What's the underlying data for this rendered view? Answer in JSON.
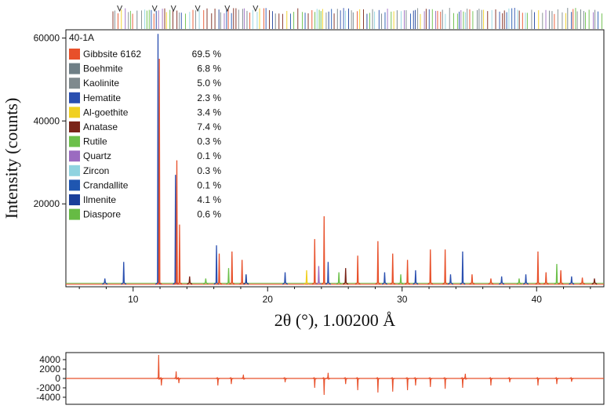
{
  "chart_data": [
    {
      "type": "line",
      "ylabel": "Intensity (counts)",
      "xlabel": "2θ (°), 1.00200 Å",
      "xlim": [
        5,
        45
      ],
      "ylim": [
        0,
        62000
      ],
      "x_ticks": [
        10,
        20,
        30,
        40
      ],
      "y_ticks": [
        20000,
        40000,
        60000
      ],
      "x_tick_labels": [
        "10",
        "20",
        "30",
        "40"
      ],
      "y_tick_labels": [
        "20000",
        "40000",
        "60000"
      ],
      "grid": false,
      "legend": {
        "title": "40-1A",
        "position": "top-left",
        "items": [
          {
            "name": "Gibbsite 6162",
            "value": "69.5 %",
            "color": "#e8502a"
          },
          {
            "name": "Boehmite",
            "value": "6.8 %",
            "color": "#6f7f86"
          },
          {
            "name": "Kaolinite",
            "value": "5.0 %",
            "color": "#7f8a8e"
          },
          {
            "name": "Hematite",
            "value": "2.3 %",
            "color": "#2a4fb0"
          },
          {
            "name": "Al-goethite",
            "value": "3.4 %",
            "color": "#f0d020"
          },
          {
            "name": "Anatase",
            "value": "7.4 %",
            "color": "#7a2418"
          },
          {
            "name": "Rutile",
            "value": "0.3 %",
            "color": "#6cc04a"
          },
          {
            "name": "Quartz",
            "value": "0.1 %",
            "color": "#9b6bc0"
          },
          {
            "name": "Zircon",
            "value": "0.3 %",
            "color": "#8fd3e0"
          },
          {
            "name": "Crandallite",
            "value": "0.1 %",
            "color": "#1f56b0"
          },
          {
            "name": "Ilmenite",
            "value": "4.1 %",
            "color": "#1a3f9a"
          },
          {
            "name": "Diaspore",
            "value": "0.6 %",
            "color": "#66bb44"
          }
        ]
      },
      "background": 600,
      "peaks": [
        {
          "x": 7.9,
          "y": 2000,
          "color": "#2a4fb0"
        },
        {
          "x": 9.3,
          "y": 6000,
          "color": "#2a4fb0"
        },
        {
          "x": 11.85,
          "y": 61000,
          "color": "#2a4fb0"
        },
        {
          "x": 11.95,
          "y": 55000,
          "color": "#e8502a"
        },
        {
          "x": 13.15,
          "y": 27000,
          "color": "#2a4fb0"
        },
        {
          "x": 13.25,
          "y": 30500,
          "color": "#e8502a"
        },
        {
          "x": 13.45,
          "y": 15000,
          "color": "#e8502a"
        },
        {
          "x": 14.2,
          "y": 2500,
          "color": "#7a2418"
        },
        {
          "x": 15.4,
          "y": 2000,
          "color": "#6cc04a"
        },
        {
          "x": 16.2,
          "y": 10000,
          "color": "#2a4fb0"
        },
        {
          "x": 16.4,
          "y": 8000,
          "color": "#e8502a"
        },
        {
          "x": 17.1,
          "y": 4500,
          "color": "#6cc04a"
        },
        {
          "x": 17.35,
          "y": 8500,
          "color": "#e8502a"
        },
        {
          "x": 18.1,
          "y": 6500,
          "color": "#e8502a"
        },
        {
          "x": 18.4,
          "y": 3000,
          "color": "#1a3f9a"
        },
        {
          "x": 21.3,
          "y": 3500,
          "color": "#2a4fb0"
        },
        {
          "x": 22.9,
          "y": 4000,
          "color": "#f0d020"
        },
        {
          "x": 23.5,
          "y": 11500,
          "color": "#e8502a"
        },
        {
          "x": 23.8,
          "y": 5000,
          "color": "#9b6bc0"
        },
        {
          "x": 24.2,
          "y": 17000,
          "color": "#e8502a"
        },
        {
          "x": 24.5,
          "y": 6000,
          "color": "#2a4fb0"
        },
        {
          "x": 25.3,
          "y": 3500,
          "color": "#6cc04a"
        },
        {
          "x": 25.8,
          "y": 4500,
          "color": "#7a2418"
        },
        {
          "x": 26.7,
          "y": 7500,
          "color": "#e8502a"
        },
        {
          "x": 28.2,
          "y": 11000,
          "color": "#e8502a"
        },
        {
          "x": 28.7,
          "y": 3500,
          "color": "#2a4fb0"
        },
        {
          "x": 29.3,
          "y": 8000,
          "color": "#e8502a"
        },
        {
          "x": 29.9,
          "y": 3000,
          "color": "#6cc04a"
        },
        {
          "x": 30.4,
          "y": 6500,
          "color": "#e8502a"
        },
        {
          "x": 31.0,
          "y": 4000,
          "color": "#2a4fb0"
        },
        {
          "x": 32.1,
          "y": 9000,
          "color": "#e8502a"
        },
        {
          "x": 33.2,
          "y": 9000,
          "color": "#e8502a"
        },
        {
          "x": 33.6,
          "y": 3000,
          "color": "#2a4fb0"
        },
        {
          "x": 34.5,
          "y": 8500,
          "color": "#2a4fb0"
        },
        {
          "x": 35.2,
          "y": 3000,
          "color": "#e8502a"
        },
        {
          "x": 36.6,
          "y": 2000,
          "color": "#e8502a"
        },
        {
          "x": 37.4,
          "y": 2500,
          "color": "#2a4fb0"
        },
        {
          "x": 38.7,
          "y": 2000,
          "color": "#6cc04a"
        },
        {
          "x": 39.2,
          "y": 3000,
          "color": "#2a4fb0"
        },
        {
          "x": 40.1,
          "y": 8500,
          "color": "#e8502a"
        },
        {
          "x": 40.7,
          "y": 3500,
          "color": "#e8502a"
        },
        {
          "x": 41.5,
          "y": 5500,
          "color": "#6cc04a"
        },
        {
          "x": 41.8,
          "y": 4000,
          "color": "#e8502a"
        },
        {
          "x": 42.6,
          "y": 2500,
          "color": "#2a4fb0"
        },
        {
          "x": 43.4,
          "y": 2200,
          "color": "#e8502a"
        },
        {
          "x": 44.3,
          "y": 2000,
          "color": "#7a2418"
        }
      ]
    },
    {
      "type": "line",
      "title": "",
      "xlim": [
        5,
        45
      ],
      "ylim": [
        -5500,
        5500
      ],
      "y_ticks": [
        -4000,
        -2000,
        0,
        2000,
        4000
      ],
      "y_tick_labels": [
        "-4000",
        "-2000",
        "0",
        "2000",
        "4000"
      ],
      "color": "#e8502a",
      "residual_spikes": [
        {
          "x": 11.9,
          "y": 5000
        },
        {
          "x": 12.1,
          "y": -1500
        },
        {
          "x": 13.2,
          "y": 1500
        },
        {
          "x": 13.4,
          "y": -1000
        },
        {
          "x": 16.3,
          "y": -1500
        },
        {
          "x": 17.3,
          "y": -1200
        },
        {
          "x": 18.2,
          "y": 800
        },
        {
          "x": 21.3,
          "y": -800
        },
        {
          "x": 23.5,
          "y": -2000
        },
        {
          "x": 24.2,
          "y": -3500
        },
        {
          "x": 24.5,
          "y": 1200
        },
        {
          "x": 25.8,
          "y": -1200
        },
        {
          "x": 26.7,
          "y": -2500
        },
        {
          "x": 28.2,
          "y": -3000
        },
        {
          "x": 29.3,
          "y": -2800
        },
        {
          "x": 30.4,
          "y": -2500
        },
        {
          "x": 31.0,
          "y": -1500
        },
        {
          "x": 32.1,
          "y": -1800
        },
        {
          "x": 33.2,
          "y": -2200
        },
        {
          "x": 34.5,
          "y": -2000
        },
        {
          "x": 34.7,
          "y": 1000
        },
        {
          "x": 36.6,
          "y": -1500
        },
        {
          "x": 38.0,
          "y": -800
        },
        {
          "x": 40.1,
          "y": -1500
        },
        {
          "x": 41.5,
          "y": -1200
        },
        {
          "x": 42.6,
          "y": -700
        }
      ]
    }
  ]
}
